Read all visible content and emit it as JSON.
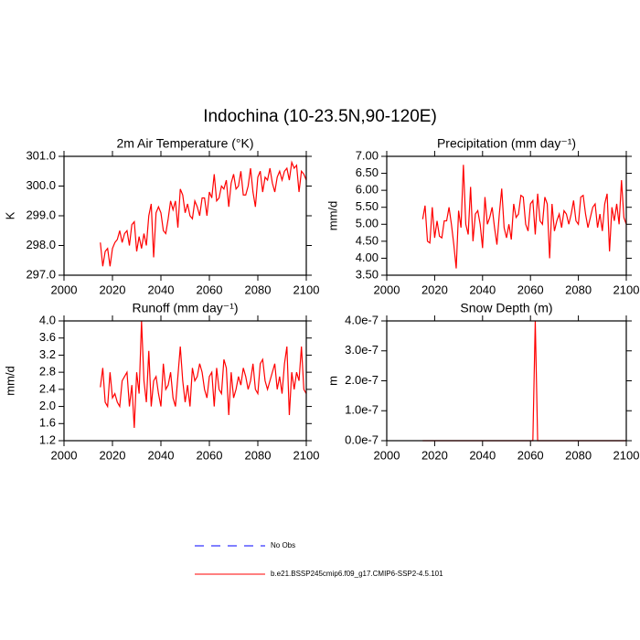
{
  "title": "Indochina (10-23.5N,90-120E)",
  "legend": [
    {
      "name": "No Obs",
      "color": "#0000ff",
      "dash": true
    },
    {
      "name": "b.e21.BSSP245cmip6.f09_g17.CMIP6-SSP2-4.5.101",
      "color": "#ff0000",
      "dash": false
    }
  ],
  "chart_data": [
    {
      "type": "line",
      "title": "2m Air Temperature (°K)",
      "ylabel": "K",
      "xlim": [
        2000,
        2100
      ],
      "xticks": [
        2000,
        2020,
        2040,
        2060,
        2080,
        2100
      ],
      "ylim": [
        297,
        301
      ],
      "yticks": [
        {
          "value": 297,
          "label": "297.0"
        },
        {
          "value": 298,
          "label": "298.0"
        },
        {
          "value": 299,
          "label": "299.0"
        },
        {
          "value": 300,
          "label": "300.0"
        },
        {
          "value": 301,
          "label": "301.0"
        }
      ],
      "x": [
        2015,
        2016,
        2017,
        2018,
        2019,
        2020,
        2021,
        2022,
        2023,
        2024,
        2025,
        2026,
        2027,
        2028,
        2029,
        2030,
        2031,
        2032,
        2033,
        2034,
        2035,
        2036,
        2037,
        2038,
        2039,
        2040,
        2041,
        2042,
        2043,
        2044,
        2045,
        2046,
        2047,
        2048,
        2049,
        2050,
        2051,
        2052,
        2053,
        2054,
        2055,
        2056,
        2057,
        2058,
        2059,
        2060,
        2061,
        2062,
        2063,
        2064,
        2065,
        2066,
        2067,
        2068,
        2069,
        2070,
        2071,
        2072,
        2073,
        2074,
        2075,
        2076,
        2077,
        2078,
        2079,
        2080,
        2081,
        2082,
        2083,
        2084,
        2085,
        2086,
        2087,
        2088,
        2089,
        2090,
        2091,
        2092,
        2093,
        2094,
        2095,
        2096,
        2097,
        2098,
        2099,
        2100
      ],
      "series": [
        {
          "color": "#ff0000",
          "values": [
            298.1,
            297.3,
            297.8,
            297.9,
            297.3,
            297.9,
            298.1,
            298.2,
            298.5,
            298.1,
            298.4,
            298.5,
            298.0,
            298.7,
            298.8,
            297.8,
            298.3,
            297.9,
            298.4,
            298.0,
            299.0,
            299.4,
            297.6,
            299.1,
            299.3,
            299.1,
            298.5,
            298.4,
            298.9,
            299.5,
            299.2,
            299.5,
            298.6,
            299.9,
            299.7,
            299.1,
            299.4,
            299.0,
            298.9,
            299.5,
            299.3,
            299.0,
            299.6,
            299.6,
            299.0,
            299.8,
            299.6,
            300.4,
            299.5,
            299.6,
            300.0,
            299.9,
            300.2,
            299.3,
            300.1,
            300.4,
            299.9,
            300.0,
            300.5,
            299.7,
            299.7,
            300.0,
            300.6,
            299.8,
            299.3,
            300.3,
            300.5,
            299.8,
            300.3,
            300.2,
            300.6,
            300.1,
            299.8,
            300.3,
            300.5,
            300.2,
            300.5,
            300.6,
            300.2,
            300.8,
            300.6,
            300.7,
            299.8,
            300.5,
            300.4,
            300.2
          ]
        }
      ]
    },
    {
      "type": "line",
      "title": "Precipitation (mm day⁻¹)",
      "ylabel": "mm/d",
      "xlim": [
        2000,
        2100
      ],
      "xticks": [
        2000,
        2020,
        2040,
        2060,
        2080,
        2100
      ],
      "ylim": [
        3.5,
        7.0
      ],
      "yticks": [
        {
          "value": 3.5,
          "label": "3.50"
        },
        {
          "value": 4.0,
          "label": "4.00"
        },
        {
          "value": 4.5,
          "label": "4.50"
        },
        {
          "value": 5.0,
          "label": "5.00"
        },
        {
          "value": 5.5,
          "label": "5.50"
        },
        {
          "value": 6.0,
          "label": "6.00"
        },
        {
          "value": 6.5,
          "label": "6.50"
        },
        {
          "value": 7.0,
          "label": "7.00"
        }
      ],
      "x": [
        2015,
        2016,
        2017,
        2018,
        2019,
        2020,
        2021,
        2022,
        2023,
        2024,
        2025,
        2026,
        2027,
        2028,
        2029,
        2030,
        2031,
        2032,
        2033,
        2034,
        2035,
        2036,
        2037,
        2038,
        2039,
        2040,
        2041,
        2042,
        2043,
        2044,
        2045,
        2046,
        2047,
        2048,
        2049,
        2050,
        2051,
        2052,
        2053,
        2054,
        2055,
        2056,
        2057,
        2058,
        2059,
        2060,
        2061,
        2062,
        2063,
        2064,
        2065,
        2066,
        2067,
        2068,
        2069,
        2070,
        2071,
        2072,
        2073,
        2074,
        2075,
        2076,
        2077,
        2078,
        2079,
        2080,
        2081,
        2082,
        2083,
        2084,
        2085,
        2086,
        2087,
        2088,
        2089,
        2090,
        2091,
        2092,
        2093,
        2094,
        2095,
        2096,
        2097,
        2098,
        2099,
        2100
      ],
      "series": [
        {
          "color": "#ff0000",
          "values": [
            5.15,
            5.55,
            4.5,
            4.45,
            5.5,
            4.6,
            5.1,
            4.65,
            4.6,
            5.1,
            5.1,
            5.5,
            5.0,
            4.4,
            3.7,
            5.4,
            4.9,
            6.75,
            5.0,
            4.7,
            6.1,
            4.5,
            5.3,
            5.4,
            5.0,
            4.3,
            5.8,
            5.0,
            5.2,
            5.5,
            4.9,
            4.4,
            5.3,
            6.05,
            4.9,
            4.6,
            5.0,
            4.55,
            5.6,
            5.2,
            5.3,
            5.85,
            5.8,
            5.0,
            4.8,
            5.6,
            5.7,
            4.7,
            5.9,
            5.1,
            5.0,
            5.8,
            5.6,
            4.0,
            5.6,
            4.8,
            5.1,
            5.3,
            4.9,
            5.4,
            5.3,
            5.0,
            5.3,
            5.7,
            5.1,
            5.0,
            5.8,
            5.85,
            5.3,
            4.9,
            5.2,
            5.5,
            5.6,
            4.9,
            5.3,
            4.8,
            5.6,
            5.9,
            4.2,
            5.5,
            5.1,
            5.6,
            5.0,
            6.3,
            5.2,
            5.0
          ]
        }
      ]
    },
    {
      "type": "line",
      "title": "Runoff (mm day⁻¹)",
      "ylabel": "mm/d",
      "xlim": [
        2000,
        2100
      ],
      "xticks": [
        2000,
        2020,
        2040,
        2060,
        2080,
        2100
      ],
      "ylim": [
        1.2,
        4.0
      ],
      "yticks": [
        1.2,
        1.6,
        {
          "value": 2,
          "label": "2.0"
        },
        2.4,
        2.8,
        3.2,
        3.6,
        {
          "value": 4,
          "label": "4.0"
        }
      ],
      "x": [
        2015,
        2016,
        2017,
        2018,
        2019,
        2020,
        2021,
        2022,
        2023,
        2024,
        2025,
        2026,
        2027,
        2028,
        2029,
        2030,
        2031,
        2032,
        2033,
        2034,
        2035,
        2036,
        2037,
        2038,
        2039,
        2040,
        2041,
        2042,
        2043,
        2044,
        2045,
        2046,
        2047,
        2048,
        2049,
        2050,
        2051,
        2052,
        2053,
        2054,
        2055,
        2056,
        2057,
        2058,
        2059,
        2060,
        2061,
        2062,
        2063,
        2064,
        2065,
        2066,
        2067,
        2068,
        2069,
        2070,
        2071,
        2072,
        2073,
        2074,
        2075,
        2076,
        2077,
        2078,
        2079,
        2080,
        2081,
        2082,
        2083,
        2084,
        2085,
        2086,
        2087,
        2088,
        2089,
        2090,
        2091,
        2092,
        2093,
        2094,
        2095,
        2096,
        2097,
        2098,
        2099,
        2100
      ],
      "series": [
        {
          "color": "#ff0000",
          "values": [
            2.45,
            2.9,
            2.1,
            2.0,
            2.8,
            2.2,
            2.3,
            2.1,
            2.0,
            2.6,
            2.7,
            2.8,
            2.0,
            2.5,
            1.5,
            2.8,
            2.3,
            4.0,
            2.6,
            2.1,
            3.3,
            2.0,
            2.6,
            2.7,
            2.3,
            2.0,
            3.0,
            2.4,
            2.5,
            2.8,
            2.2,
            2.0,
            2.7,
            3.4,
            2.6,
            2.1,
            2.5,
            2.0,
            2.9,
            2.6,
            2.7,
            3.0,
            2.8,
            2.4,
            2.2,
            2.7,
            2.8,
            2.0,
            2.9,
            2.4,
            2.3,
            3.1,
            2.9,
            1.8,
            2.8,
            2.2,
            2.4,
            2.7,
            2.5,
            2.9,
            2.7,
            2.4,
            2.6,
            3.0,
            2.4,
            2.3,
            3.0,
            3.1,
            2.6,
            2.4,
            2.6,
            2.8,
            3.0,
            2.4,
            2.7,
            2.3,
            3.0,
            3.4,
            1.8,
            2.8,
            2.4,
            2.8,
            2.6,
            3.4,
            2.4,
            2.3
          ]
        }
      ]
    },
    {
      "type": "line",
      "title": "Snow Depth (m)",
      "ylabel": "m",
      "xlim": [
        2000,
        2100
      ],
      "xticks": [
        2000,
        2020,
        2040,
        2060,
        2080,
        2100
      ],
      "ylim": [
        0,
        4e-07
      ],
      "yticks": [
        {
          "value": 0,
          "label": "0.0e-7"
        },
        {
          "value": 1e-07,
          "label": "1.0e-7"
        },
        {
          "value": 2e-07,
          "label": "2.0e-7"
        },
        {
          "value": 3e-07,
          "label": "3.0e-7"
        },
        {
          "value": 4e-07,
          "label": "4.0e-7"
        }
      ],
      "x": [
        2015,
        2016,
        2017,
        2018,
        2019,
        2020,
        2021,
        2022,
        2023,
        2024,
        2025,
        2026,
        2027,
        2028,
        2029,
        2030,
        2031,
        2032,
        2033,
        2034,
        2035,
        2036,
        2037,
        2038,
        2039,
        2040,
        2041,
        2042,
        2043,
        2044,
        2045,
        2046,
        2047,
        2048,
        2049,
        2050,
        2051,
        2052,
        2053,
        2054,
        2055,
        2056,
        2057,
        2058,
        2059,
        2060,
        2061,
        2062,
        2063,
        2064,
        2065,
        2066,
        2067,
        2068,
        2069,
        2070,
        2071,
        2072,
        2073,
        2074,
        2075,
        2076,
        2077,
        2078,
        2079,
        2080,
        2081,
        2082,
        2083,
        2084,
        2085,
        2086,
        2087,
        2088,
        2089,
        2090,
        2091,
        2092,
        2093,
        2094,
        2095,
        2096,
        2097,
        2098,
        2099,
        2100
      ],
      "series": [
        {
          "color": "#ff0000",
          "values": [
            0,
            0,
            0,
            0,
            0,
            0,
            0,
            0,
            0,
            0,
            0,
            0,
            0,
            0,
            0,
            0,
            0,
            0,
            0,
            0,
            0,
            0,
            0,
            0,
            0,
            0,
            0,
            0,
            0,
            0,
            0,
            0,
            0,
            0,
            0,
            0,
            0,
            0,
            0,
            0,
            0,
            0,
            0,
            0,
            0,
            0,
            0,
            4e-07,
            0,
            0,
            0,
            0,
            0,
            0,
            0,
            0,
            0,
            0,
            0,
            0,
            0,
            0,
            0,
            0,
            0,
            0,
            0,
            0,
            0,
            0,
            0,
            0,
            0,
            0,
            0,
            0,
            0,
            0,
            0,
            0,
            0,
            0,
            0,
            0,
            0,
            0
          ]
        }
      ]
    }
  ]
}
